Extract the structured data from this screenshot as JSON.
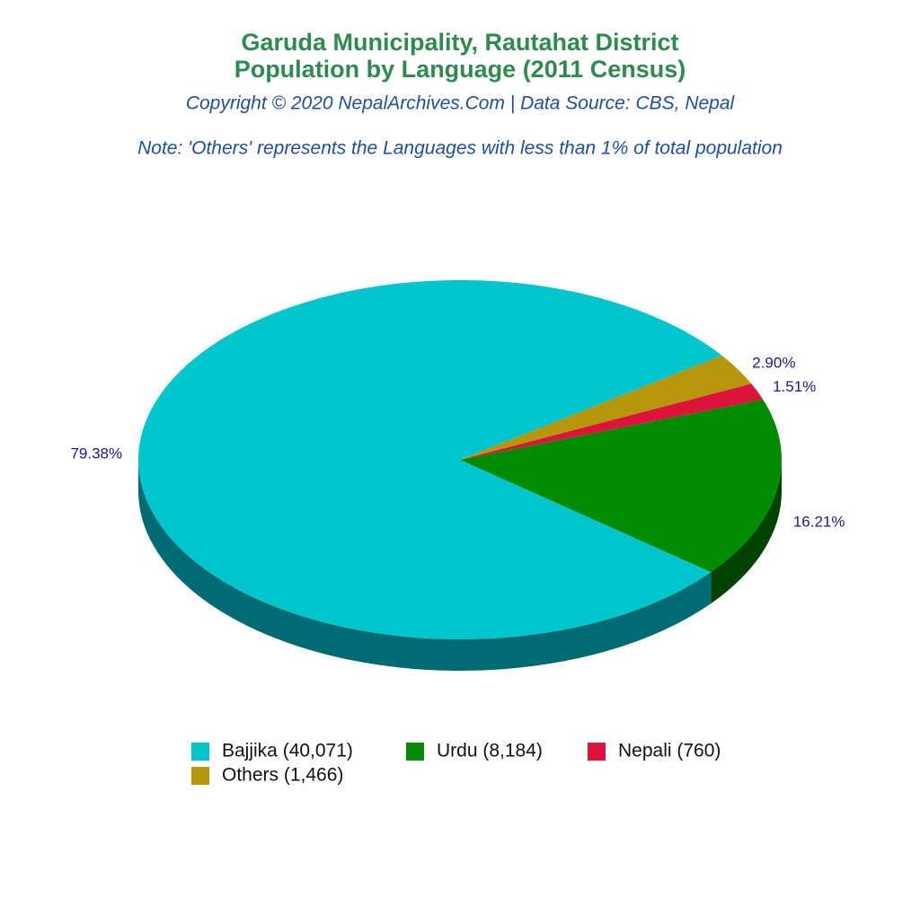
{
  "chart_data": {
    "type": "pie3d",
    "title": "Garuda Municipality, Rautahat District",
    "subtitle": "Population by Language (2011 Census)",
    "copyright": "Copyright © 2020 NepalArchives.Com | Data Source: CBS, Nepal",
    "note": "Note: 'Others' represents the Languages with less than 1% of total population",
    "categories": [
      "Bajjika (40,071)",
      "Urdu (8,184)",
      "Nepali (760)",
      "Others (1,466)"
    ],
    "values": [
      79.38,
      16.21,
      1.51,
      2.9
    ],
    "value_labels": [
      "79.38%",
      "16.21%",
      "1.51%",
      "2.90%"
    ],
    "colors": [
      "#00c5cd",
      "#008b00",
      "#dc143c",
      "#b8960c"
    ],
    "side_colors": [
      "#006b73",
      "#004200",
      "#7a0b21",
      "#6b5707"
    ]
  }
}
